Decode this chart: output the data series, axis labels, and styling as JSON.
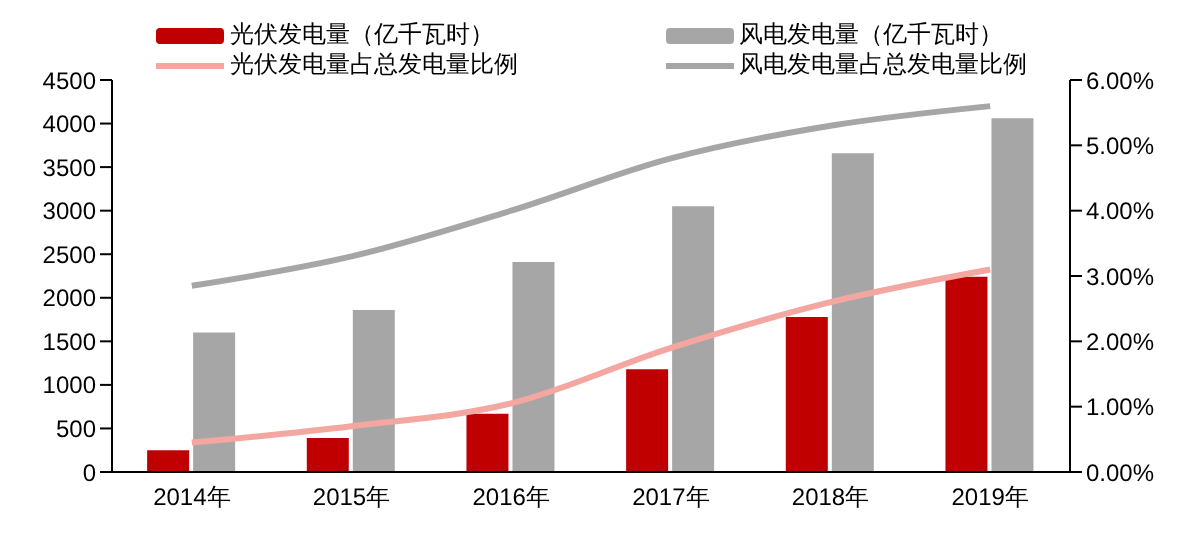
{
  "chart_data": {
    "type": "bar",
    "categories": [
      "2014年",
      "2015年",
      "2016年",
      "2017年",
      "2018年",
      "2019年"
    ],
    "series": [
      {
        "name": "光伏发电量（亿千瓦时）",
        "color": "#c00000",
        "values": [
          250,
          390,
          670,
          1180,
          1780,
          2240
        ]
      },
      {
        "name": "风电发电量（亿千瓦时）",
        "color": "#a6a6a6",
        "values": [
          1600,
          1860,
          2410,
          3050,
          3660,
          4060
        ]
      },
      {
        "name": "光伏发电量占总发电量比例",
        "type": "line",
        "axis": "y2",
        "color": "#f4a6a0",
        "values": [
          0.45,
          0.7,
          1.05,
          1.9,
          2.6,
          3.1
        ]
      },
      {
        "name": "风电发电量占总发电量比例",
        "type": "line",
        "axis": "y2",
        "color": "#a6a6a6",
        "values": [
          2.85,
          3.3,
          4.0,
          4.8,
          5.3,
          5.6
        ]
      }
    ],
    "ylim": [
      0,
      4500
    ],
    "yticks": [
      0,
      500,
      1000,
      1500,
      2000,
      2500,
      3000,
      3500,
      4000,
      4500
    ],
    "y2lim": [
      0,
      6
    ],
    "y2ticks": [
      {
        "value": 0,
        "label": "0.00%"
      },
      {
        "value": 1,
        "label": "1.00%"
      },
      {
        "value": 2,
        "label": "2.00%"
      },
      {
        "value": 3,
        "label": "3.00%"
      },
      {
        "value": 4,
        "label": "4.00%"
      },
      {
        "value": 5,
        "label": "5.00%"
      },
      {
        "value": 6,
        "label": "6.00%"
      }
    ],
    "grid": false,
    "legend": "top",
    "marker": "none",
    "line_style": "solid"
  }
}
